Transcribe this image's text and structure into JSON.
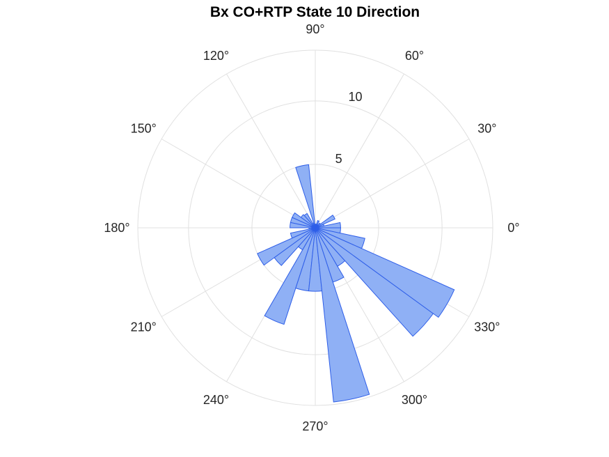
{
  "chart_data": {
    "type": "polar-histogram",
    "title": "Bx  CO+RTP State 10 Direction",
    "r_ticks": [
      5,
      10
    ],
    "r_tick_labels": [
      "5",
      "10"
    ],
    "r_max": 14,
    "theta_ticks": [
      0,
      30,
      60,
      90,
      120,
      150,
      180,
      210,
      240,
      270,
      300,
      330
    ],
    "theta_tick_labels": [
      "0°",
      "30°",
      "60°",
      "90°",
      "120°",
      "150°",
      "180°",
      "210°",
      "240°",
      "270°",
      "300°",
      "330°"
    ],
    "bin_width_deg": 12,
    "bins": [
      {
        "start": 0,
        "end": 12,
        "value": 2.0
      },
      {
        "start": 12,
        "end": 24,
        "value": 0.7
      },
      {
        "start": 24,
        "end": 36,
        "value": 1.7
      },
      {
        "start": 36,
        "end": 48,
        "value": 0.5
      },
      {
        "start": 48,
        "end": 60,
        "value": 0.3
      },
      {
        "start": 60,
        "end": 72,
        "value": 0.6
      },
      {
        "start": 72,
        "end": 84,
        "value": 0.3
      },
      {
        "start": 84,
        "end": 96,
        "value": 0.2
      },
      {
        "start": 96,
        "end": 108,
        "value": 5.0
      },
      {
        "start": 108,
        "end": 120,
        "value": 0.4
      },
      {
        "start": 120,
        "end": 132,
        "value": 1.3
      },
      {
        "start": 132,
        "end": 144,
        "value": 1.4
      },
      {
        "start": 144,
        "end": 156,
        "value": 2.0
      },
      {
        "start": 156,
        "end": 168,
        "value": 2.0
      },
      {
        "start": 168,
        "end": 180,
        "value": 2.0
      },
      {
        "start": 180,
        "end": 192,
        "value": 0.5
      },
      {
        "start": 192,
        "end": 204,
        "value": 2.0
      },
      {
        "start": 204,
        "end": 216,
        "value": 5.0
      },
      {
        "start": 216,
        "end": 228,
        "value": 4.0
      },
      {
        "start": 228,
        "end": 240,
        "value": 2.0
      },
      {
        "start": 240,
        "end": 252,
        "value": 8.0
      },
      {
        "start": 252,
        "end": 264,
        "value": 5.0
      },
      {
        "start": 264,
        "end": 276,
        "value": 5.0
      },
      {
        "start": 276,
        "end": 288,
        "value": 13.8
      },
      {
        "start": 288,
        "end": 300,
        "value": 4.5
      },
      {
        "start": 300,
        "end": 312,
        "value": 3.5
      },
      {
        "start": 312,
        "end": 324,
        "value": 11.5
      },
      {
        "start": 324,
        "end": 336,
        "value": 12.0
      },
      {
        "start": 336,
        "end": 348,
        "value": 4.0
      },
      {
        "start": 348,
        "end": 360,
        "value": 2.0
      }
    ],
    "grid": true,
    "colors": {
      "fill": "#8fb0f5",
      "edge": "#2e5ee8",
      "grid": "#e0e0e0",
      "text": "#262626"
    }
  }
}
